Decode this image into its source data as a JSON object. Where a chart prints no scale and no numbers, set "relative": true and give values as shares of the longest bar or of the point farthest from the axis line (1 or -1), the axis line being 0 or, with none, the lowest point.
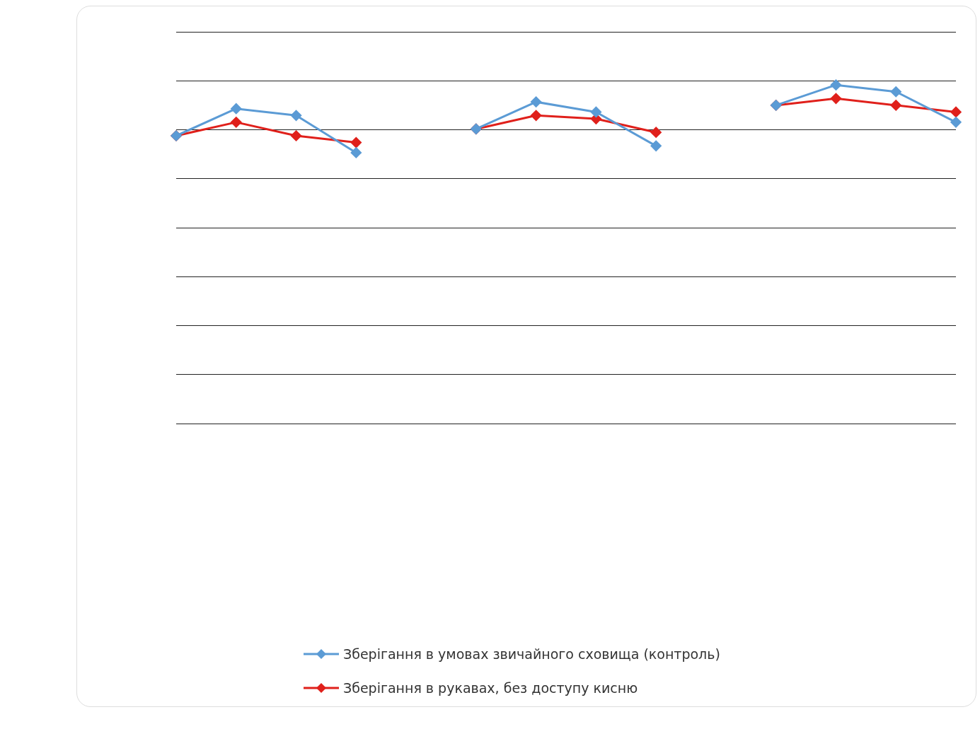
{
  "chart_data": {
    "type": "line",
    "relative": true,
    "categories": [
      null,
      null,
      null,
      null,
      null,
      null,
      null,
      null,
      null,
      null,
      null,
      null,
      null,
      null
    ],
    "series": [
      {
        "name": "Зберігання в умовах звичайного сховища (контроль)",
        "color": "#5b9bd5",
        "values": [
          0.85,
          0.93,
          0.91,
          0.8,
          null,
          null,
          null,
          null,
          null,
          null,
          null,
          null,
          null,
          null
        ]
      },
      {
        "name": "Зберігання в рукавах, без доступу кисню",
        "color": "#e0201b",
        "values": [
          0.85,
          0.89,
          0.85,
          0.83,
          null,
          null,
          null,
          null,
          null,
          null,
          null,
          null,
          null,
          null
        ]
      },
      {
        "color": "#5b9bd5",
        "values": [
          null,
          null,
          null,
          null,
          null,
          0.87,
          0.95,
          0.92,
          0.82,
          null,
          null,
          null,
          null,
          null
        ]
      },
      {
        "color": "#e0201b",
        "values": [
          null,
          null,
          null,
          null,
          null,
          0.87,
          0.91,
          0.9,
          0.86,
          null,
          null,
          null,
          null,
          null
        ]
      },
      {
        "color": "#5b9bd5",
        "values": [
          null,
          null,
          null,
          null,
          null,
          null,
          null,
          null,
          null,
          null,
          0.94,
          1,
          0.98,
          0.89
        ]
      },
      {
        "color": "#e0201b",
        "values": [
          null,
          null,
          null,
          null,
          null,
          null,
          null,
          null,
          null,
          null,
          0.94,
          0.96,
          0.94,
          0.92
        ]
      }
    ],
    "grid": "y",
    "legend": "bottom",
    "marker": "diamond",
    "line_style": "solid"
  }
}
